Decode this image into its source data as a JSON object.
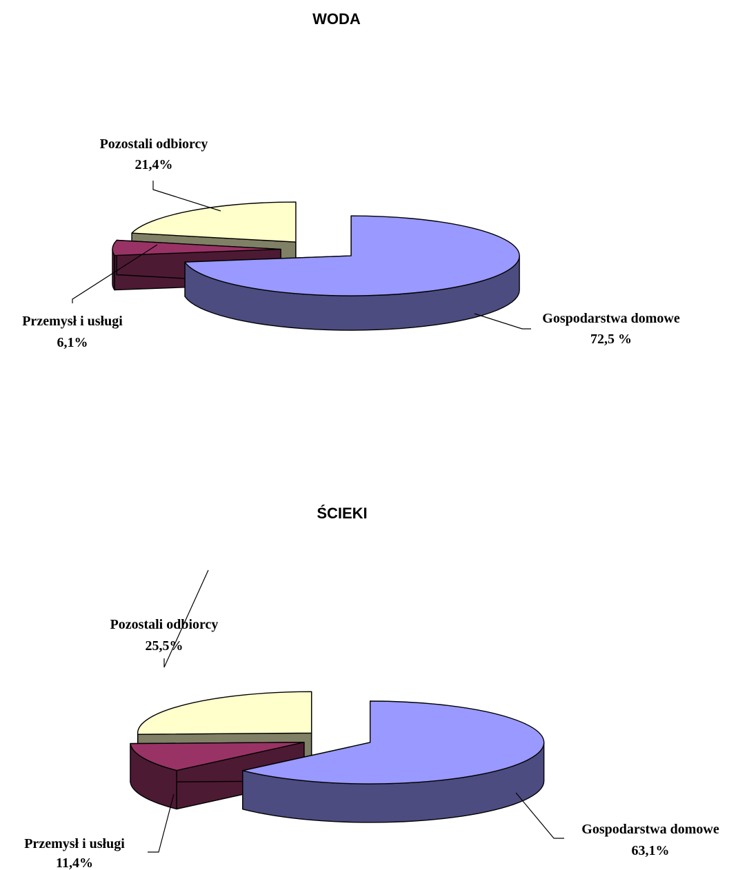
{
  "chart_data": [
    {
      "type": "pie",
      "title": "WODA",
      "slices": [
        {
          "name": "Gospodarstwa domowe",
          "value": 72.5,
          "value_label": "72,5 %",
          "color": "#9999ff",
          "side_color": "#4c4c80"
        },
        {
          "name": "Przemysł i usługi",
          "value": 6.1,
          "value_label": "6,1%",
          "color": "#993366",
          "side_color": "#4d1a33"
        },
        {
          "name": "Pozostali odbiorcy",
          "value": 21.4,
          "value_label": "21,4%",
          "color": "#ffffcc",
          "side_color": "#808066"
        }
      ]
    },
    {
      "type": "pie",
      "title": "ŚCIEKI",
      "slices": [
        {
          "name": "Gospodarstwa domowe",
          "value": 63.1,
          "value_label": "63,1%",
          "color": "#9999ff",
          "side_color": "#4c4c80"
        },
        {
          "name": "Przemysł i usługi",
          "value": 11.4,
          "value_label": "11,4%",
          "color": "#993366",
          "side_color": "#4d1a33"
        },
        {
          "name": "Pozostali odbiorcy",
          "value": 25.5,
          "value_label": "25,5%",
          "color": "#ffffcc",
          "side_color": "#808066"
        }
      ]
    }
  ]
}
